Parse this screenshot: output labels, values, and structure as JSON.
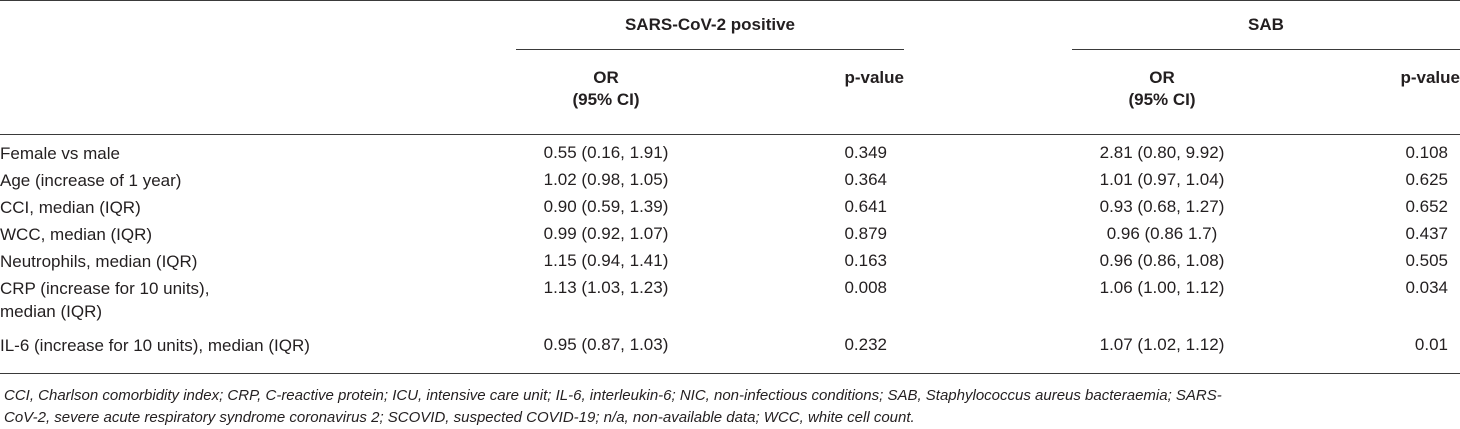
{
  "header": {
    "group1": "SARS-CoV-2 positive",
    "group2": "SAB",
    "or_line1": "OR",
    "or_line2": "(95% CI)",
    "pvalue": "p-value"
  },
  "rows": [
    {
      "label": [
        "Female vs male"
      ],
      "or1": "0.55 (0.16, 1.91)",
      "p1": "0.349",
      "or2": "2.81 (0.80, 9.92)",
      "p2": "0.108"
    },
    {
      "label": [
        "Age (increase of 1 year)"
      ],
      "or1": "1.02 (0.98, 1.05)",
      "p1": "0.364",
      "or2": "1.01 (0.97, 1.04)",
      "p2": "0.625"
    },
    {
      "label": [
        "CCI, median (IQR)"
      ],
      "or1": "0.90 (0.59, 1.39)",
      "p1": "0.641",
      "or2": "0.93 (0.68, 1.27)",
      "p2": "0.652"
    },
    {
      "label": [
        "WCC, median (IQR)"
      ],
      "or1": "0.99 (0.92, 1.07)",
      "p1": "0.879",
      "or2": "0.96 (0.86 1.7)",
      "p2": "0.437"
    },
    {
      "label": [
        "Neutrophils, median (IQR)"
      ],
      "or1": "1.15 (0.94, 1.41)",
      "p1": "0.163",
      "or2": "0.96 (0.86, 1.08)",
      "p2": "0.505"
    },
    {
      "label": [
        "CRP (increase for 10 units),",
        "median (IQR)"
      ],
      "or1": "1.13 (1.03, 1.23)",
      "p1": "0.008",
      "or2": "1.06 (1.00, 1.12)",
      "p2": "0.034"
    },
    {
      "label": [
        "IL-6 (increase for 10 units), median (IQR)"
      ],
      "or1": "0.95 (0.87, 1.03)",
      "p1": "0.232",
      "or2": "1.07 (1.02, 1.12)",
      "p2": "0.01"
    }
  ],
  "footnote": {
    "line1": "CCI, Charlson comorbidity index; CRP, C-reactive protein; ICU, intensive care unit; IL-6, interleukin-6; NIC, non-infectious conditions; SAB, Staphylococcus aureus bacteraemia; SARS-",
    "line2": "CoV-2, severe acute respiratory syndrome coronavirus 2; SCOVID, suspected COVID-19; n/a, non-available data; WCC, white cell count."
  }
}
